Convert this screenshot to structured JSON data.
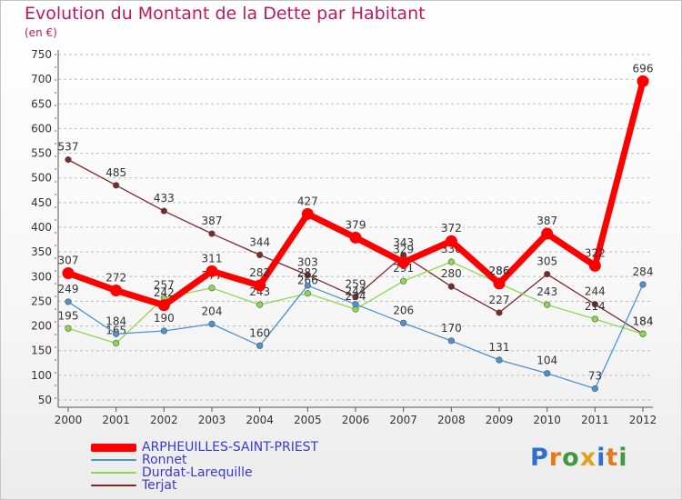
{
  "chart_data": {
    "type": "line",
    "title": "Evolution du Montant de la Dette par Habitant",
    "subtitle": "(en €)",
    "categories": [
      "2000",
      "2001",
      "2002",
      "2003",
      "2004",
      "2005",
      "2006",
      "2007",
      "2008",
      "2009",
      "2010",
      "2011",
      "2012"
    ],
    "ylim": [
      50,
      750
    ],
    "yticks": [
      50,
      100,
      150,
      200,
      250,
      300,
      350,
      400,
      450,
      500,
      550,
      600,
      650,
      700,
      750
    ],
    "grid": "horizontal dashed",
    "legend_position": "bottom-left",
    "series": [
      {
        "name": "Terjat",
        "color": "#7b2a2a",
        "values": [
          537,
          485,
          433,
          387,
          344,
          303,
          259,
          343,
          280,
          227,
          305,
          244,
          184
        ]
      },
      {
        "name": "Durdat-Larequille",
        "color": "#8ed84f",
        "values": [
          195,
          165,
          257,
          277,
          243,
          266,
          234,
          291,
          330,
          286,
          243,
          214,
          184
        ]
      },
      {
        "name": "Ronnet",
        "color": "#4d92d0",
        "values": [
          249,
          184,
          190,
          204,
          160,
          282,
          244,
          206,
          170,
          131,
          104,
          73,
          284
        ]
      },
      {
        "name": "ARPHEUILLES-SAINT-PRIEST",
        "color": "#ff0000",
        "values": [
          307,
          272,
          242,
          311,
          282,
          427,
          379,
          329,
          372,
          286,
          387,
          322,
          696
        ]
      }
    ]
  },
  "legend": [
    {
      "label": "ARPHEUILLES-SAINT-PRIEST",
      "color": "#ff0000"
    },
    {
      "label": "Ronnet",
      "color": "#4d92d0"
    },
    {
      "label": "Durdat-Larequille",
      "color": "#8ed84f"
    },
    {
      "label": "Terjat",
      "color": "#7b2a2a"
    }
  ],
  "logo": {
    "text": "Proxiti",
    "letters": [
      {
        "ch": "P",
        "color": "#2f6fce"
      },
      {
        "ch": "r",
        "color": "#e27a1b"
      },
      {
        "ch": "o",
        "color": "#3d9a3d"
      },
      {
        "ch": "x",
        "color": "#e0a21a"
      },
      {
        "ch": "i",
        "color": "#2f6fce"
      },
      {
        "ch": "t",
        "color": "#e27a1b"
      },
      {
        "ch": "i",
        "color": "#3d9a3d"
      }
    ]
  }
}
